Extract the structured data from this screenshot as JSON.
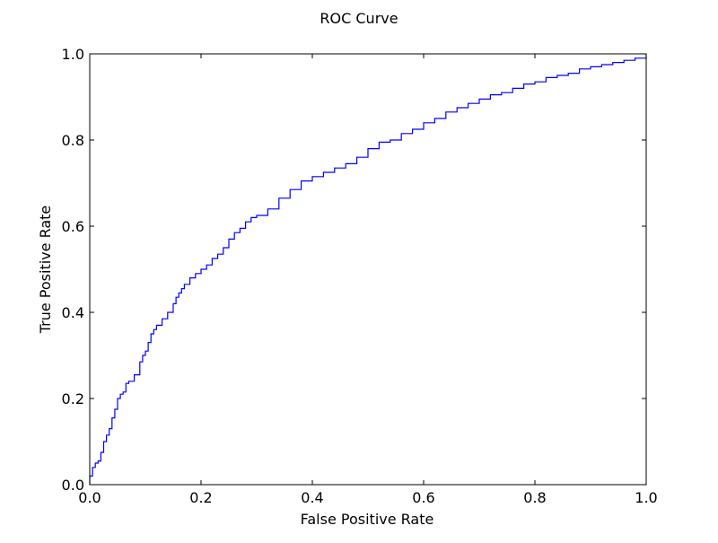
{
  "chart_data": {
    "type": "line",
    "title": "ROC Curve",
    "xlabel": "False Positive Rate",
    "ylabel": "True Positive Rate",
    "xlim": [
      0.0,
      1.0
    ],
    "ylim": [
      0.0,
      1.0
    ],
    "xticks": [
      0.0,
      0.2,
      0.4,
      0.6,
      0.8,
      1.0
    ],
    "yticks": [
      0.0,
      0.2,
      0.4,
      0.6,
      0.8,
      1.0
    ],
    "xtick_labels": [
      "0.0",
      "0.2",
      "0.4",
      "0.6",
      "0.8",
      "1.0"
    ],
    "ytick_labels": [
      "0.0",
      "0.2",
      "0.4",
      "0.6",
      "0.8",
      "1.0"
    ],
    "grid": false,
    "line_color": "#0000ff",
    "series": [
      {
        "x": [
          0.0,
          0.0,
          0.005,
          0.01,
          0.015,
          0.02,
          0.025,
          0.03,
          0.035,
          0.04,
          0.045,
          0.05,
          0.055,
          0.06,
          0.065,
          0.07,
          0.08,
          0.09,
          0.095,
          0.1,
          0.105,
          0.11,
          0.115,
          0.12,
          0.13,
          0.14,
          0.15,
          0.155,
          0.16,
          0.165,
          0.17,
          0.18,
          0.19,
          0.2,
          0.21,
          0.22,
          0.23,
          0.24,
          0.25,
          0.26,
          0.27,
          0.28,
          0.29,
          0.3,
          0.32,
          0.34,
          0.36,
          0.38,
          0.4,
          0.42,
          0.44,
          0.46,
          0.48,
          0.5,
          0.52,
          0.54,
          0.56,
          0.58,
          0.6,
          0.62,
          0.64,
          0.66,
          0.68,
          0.7,
          0.72,
          0.74,
          0.76,
          0.78,
          0.8,
          0.82,
          0.84,
          0.86,
          0.88,
          0.9,
          0.92,
          0.94,
          0.96,
          0.98,
          1.0
        ],
        "y": [
          0.0,
          0.02,
          0.04,
          0.05,
          0.055,
          0.075,
          0.1,
          0.115,
          0.13,
          0.155,
          0.175,
          0.2,
          0.21,
          0.215,
          0.235,
          0.24,
          0.255,
          0.285,
          0.3,
          0.31,
          0.33,
          0.35,
          0.36,
          0.37,
          0.385,
          0.4,
          0.42,
          0.435,
          0.445,
          0.455,
          0.465,
          0.48,
          0.49,
          0.5,
          0.51,
          0.525,
          0.535,
          0.55,
          0.57,
          0.585,
          0.595,
          0.61,
          0.62,
          0.625,
          0.64,
          0.665,
          0.685,
          0.705,
          0.715,
          0.725,
          0.735,
          0.745,
          0.76,
          0.78,
          0.795,
          0.8,
          0.815,
          0.825,
          0.84,
          0.85,
          0.865,
          0.875,
          0.885,
          0.895,
          0.905,
          0.91,
          0.92,
          0.93,
          0.935,
          0.945,
          0.95,
          0.955,
          0.965,
          0.97,
          0.975,
          0.98,
          0.985,
          0.99,
          1.0
        ]
      }
    ]
  }
}
